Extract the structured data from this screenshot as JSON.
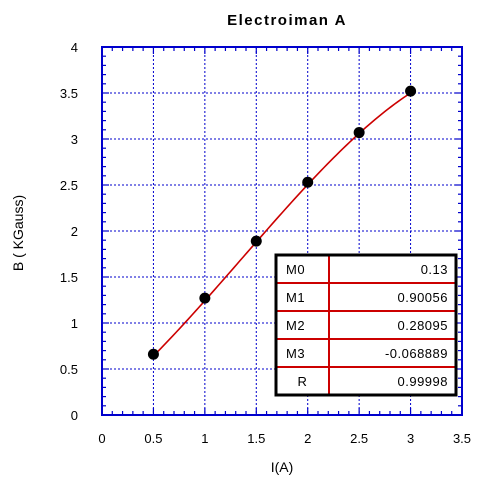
{
  "chart_data": {
    "type": "scatter",
    "title": "Electroiman A",
    "xlabel": "I(A)",
    "ylabel": "B ( KGauss)",
    "xlim": [
      0,
      3.5
    ],
    "ylim": [
      0,
      4
    ],
    "xticks": [
      "0",
      "0.5",
      "1",
      "1.5",
      "2",
      "2.5",
      "3",
      "3.5"
    ],
    "yticks": [
      "0",
      "0.5",
      "1",
      "1.5",
      "2",
      "2.5",
      "3",
      "3.5",
      "4"
    ],
    "grid": true,
    "series": [
      {
        "x": [
          0.5,
          1.0,
          1.5,
          2.0,
          2.5,
          3.0
        ],
        "y": [
          0.66,
          1.27,
          1.89,
          2.53,
          3.07,
          3.52
        ]
      }
    ],
    "fit": {
      "type": "polynomial",
      "coefficients": {
        "M0": 0.13,
        "M1": 0.90056,
        "M2": 0.28095,
        "M3": -0.068889
      },
      "R": 0.99998,
      "x_range": [
        0.5,
        3.0
      ]
    },
    "fit_table": [
      {
        "label": "M0",
        "value": "0.13"
      },
      {
        "label": "M1",
        "value": "0.90056"
      },
      {
        "label": "M2",
        "value": "0.28095"
      },
      {
        "label": "M3",
        "value": "-0.068889"
      },
      {
        "label": "R",
        "value": "0.99998"
      }
    ],
    "colors": {
      "grid": "#0000cc",
      "frame": "#0000cc",
      "fit_line": "#cc0000",
      "points": "#000000",
      "table_lines": "#cc0000"
    }
  }
}
